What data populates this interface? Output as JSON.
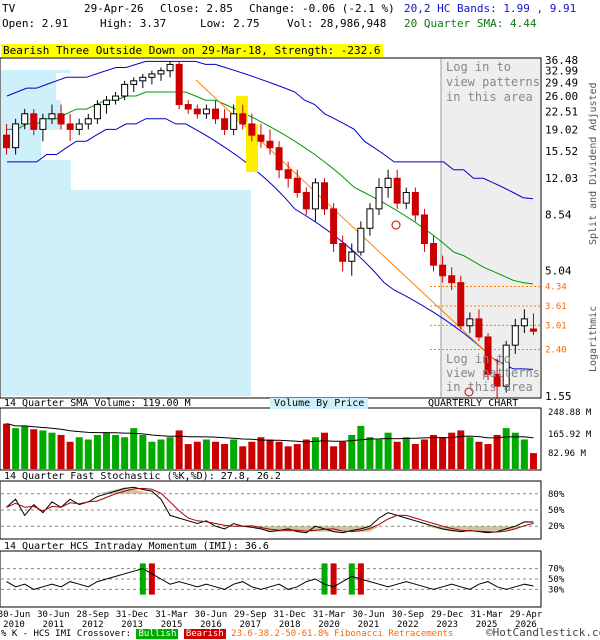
{
  "header": {
    "symbol": "TV",
    "date": "29-Apr-26",
    "close": "Close: 2.85",
    "change": "Change: -0.06 (-2.1 %)",
    "open": "Open: 2.91",
    "high": "High: 3.37",
    "low": "Low: 2.75",
    "vol": "Vol: 28,986,948",
    "hc_bands": "20,2 HC Bands: 1.99 , 9.91",
    "sma": "20 Quarter SMA: 4.44"
  },
  "pattern_banner": "Bearish Three Outside Down on 29-Mar-18, Strength: -232.6",
  "login_note_top": [
    "Log in to",
    "view patterns",
    "in this area"
  ],
  "login_note_bottom": [
    "Log in to",
    "view patterns",
    "in this area"
  ],
  "side_label_top": "Split and Dividend Adjusted",
  "side_label_bottom": "Logarithmic",
  "volume_by_price": "Volume By Price",
  "quarterly_chart": "QUARTERLY CHART",
  "volume_title": "14 Quarter SMA Volume: 119.00 M",
  "stoch_title": "14 Quarter Fast Stochastic (%K,%D): 27.8, 26.2",
  "imi_title": "14 Quarter HCS Intraday Momentum (IMI): 36.6",
  "watermark": "©HotCandlestick.com",
  "footer": {
    "legend_label": "% K - HCS IMI Crossover:",
    "bullish": "Bullish",
    "bearish": "Bearish",
    "fib": "23.6-38.2-50-61.8% Fibonacci Retracements"
  },
  "colors": {
    "bull": "#00aa00",
    "bear": "#cc0000",
    "hc_band": "#0000cc",
    "sma": "#009900",
    "vbp": "#cdf0fa",
    "fib": "#ff8000"
  },
  "chart_data": {
    "type": "candlestick",
    "price_ticks": [
      "36.48",
      "32.99",
      "29.49",
      "26.00",
      "22.51",
      "19.02",
      "15.52",
      "12.03",
      "8.54",
      "5.04",
      "1.55"
    ],
    "fib_levels": [
      "4.34",
      "3.61",
      "3.01",
      "2.40"
    ],
    "x_ticks": [
      "30-Jun 2010",
      "30-Jun 2011",
      "28-Sep 2012",
      "31-Dec 2013",
      "31-Mar 2015",
      "30-Jun 2016",
      "29-Sep 2017",
      "31-Dec 2018",
      "31-Mar 2020",
      "30-Jun 2021",
      "30-Sep 2022",
      "29-Dec 2023",
      "31-Mar 2025",
      "29-Apr 2026"
    ],
    "candles": [
      [
        18,
        20,
        15,
        16
      ],
      [
        16,
        21,
        15,
        20
      ],
      [
        20,
        23,
        19,
        22
      ],
      [
        22,
        23,
        18,
        19
      ],
      [
        19,
        22,
        17,
        21
      ],
      [
        21,
        24,
        20,
        22
      ],
      [
        22,
        24,
        19,
        20
      ],
      [
        20,
        22,
        17,
        19
      ],
      [
        19,
        21,
        18,
        20
      ],
      [
        20,
        22,
        19,
        21
      ],
      [
        21,
        25,
        20,
        24
      ],
      [
        24,
        26,
        22,
        25
      ],
      [
        25,
        27,
        24,
        26
      ],
      [
        26,
        30,
        25,
        29
      ],
      [
        29,
        31,
        27,
        30
      ],
      [
        30,
        32,
        28,
        31
      ],
      [
        31,
        33,
        29,
        32
      ],
      [
        32,
        34,
        30,
        33
      ],
      [
        33,
        36,
        31,
        35
      ],
      [
        35,
        36,
        23,
        24
      ],
      [
        24,
        25,
        22,
        23
      ],
      [
        23,
        24,
        21,
        22
      ],
      [
        22,
        24,
        21,
        23
      ],
      [
        23,
        25,
        20,
        21
      ],
      [
        21,
        23,
        18,
        19
      ],
      [
        19,
        24,
        18,
        22
      ],
      [
        22,
        24,
        19,
        20
      ],
      [
        20,
        22,
        17,
        18
      ],
      [
        18,
        20,
        16,
        17
      ],
      [
        17,
        19,
        15,
        16
      ],
      [
        16,
        17,
        12,
        13
      ],
      [
        13,
        14,
        11,
        12
      ],
      [
        12,
        13,
        10,
        10.5
      ],
      [
        10.5,
        11,
        8.5,
        9
      ],
      [
        9,
        12,
        8,
        11.5
      ],
      [
        11.5,
        12,
        8.5,
        9
      ],
      [
        9,
        9.5,
        6,
        6.5
      ],
      [
        6.5,
        7,
        5,
        5.5
      ],
      [
        5.5,
        6.5,
        4.8,
        6
      ],
      [
        6,
        8,
        5.8,
        7.5
      ],
      [
        7.5,
        9.5,
        7,
        9
      ],
      [
        9,
        12,
        8.5,
        11
      ],
      [
        11,
        13,
        10,
        12
      ],
      [
        12,
        13,
        9,
        9.5
      ],
      [
        9.5,
        11,
        9,
        10.5
      ],
      [
        10.5,
        11,
        8,
        8.5
      ],
      [
        8.5,
        9,
        6,
        6.5
      ],
      [
        6.5,
        7,
        5,
        5.3
      ],
      [
        5.3,
        5.8,
        4.5,
        4.8
      ],
      [
        4.8,
        5.2,
        4.2,
        4.5
      ],
      [
        4.5,
        4.8,
        2.9,
        3.0
      ],
      [
        3.0,
        3.4,
        2.8,
        3.2
      ],
      [
        3.2,
        3.5,
        2.6,
        2.7
      ],
      [
        2.7,
        2.8,
        1.8,
        1.9
      ],
      [
        1.9,
        2.2,
        1.5,
        1.7
      ],
      [
        1.7,
        2.6,
        1.6,
        2.5
      ],
      [
        2.5,
        3.2,
        2.3,
        3.0
      ],
      [
        3.0,
        3.5,
        2.8,
        3.2
      ],
      [
        2.91,
        3.37,
        2.75,
        2.85
      ]
    ],
    "hc_upper": [
      26,
      27,
      28,
      28,
      29,
      30,
      31,
      31,
      31,
      32,
      33,
      34,
      34,
      35,
      36,
      36,
      36,
      36,
      36,
      36,
      35,
      35,
      34,
      33,
      32,
      31,
      30,
      29,
      28,
      27,
      25,
      24,
      22,
      21,
      20,
      19,
      17,
      16,
      15,
      14,
      14,
      14,
      14,
      14,
      14,
      13,
      13,
      12,
      12,
      11.5,
      11,
      10.5,
      10,
      9.9
    ],
    "hc_lower": [
      14,
      14,
      14,
      14,
      15,
      15,
      16,
      17,
      17,
      18,
      19,
      19,
      20,
      20,
      21,
      21,
      21,
      20,
      20,
      19,
      18,
      17,
      16,
      15,
      14,
      13,
      12,
      11,
      10,
      9,
      8.5,
      8,
      7.5,
      7,
      6.5,
      6,
      5.5,
      5,
      4.5,
      4.2,
      4,
      3.8,
      3.6,
      3.4,
      3.2,
      3,
      2.8,
      2.6,
      2.4,
      2.2,
      2.1,
      2.0,
      2.0,
      1.99
    ],
    "sma_values": [
      19,
      19,
      20,
      20,
      21,
      21,
      22,
      23,
      23,
      24,
      25,
      25,
      26,
      26,
      27,
      27,
      27,
      27,
      27,
      26,
      25,
      25,
      24,
      23,
      22,
      21,
      20,
      19,
      18,
      17,
      16,
      15,
      14,
      13,
      12,
      11,
      10.5,
      10,
      9.5,
      9,
      8.5,
      8,
      7.5,
      7,
      6.5,
      6,
      5.8,
      5.5,
      5.2,
      5,
      4.8,
      4.6,
      4.5,
      4.44
    ],
    "volume_ticks": [
      "248.88 M",
      "165.92 M",
      "82.96 M"
    ],
    "volume_values": [
      200,
      180,
      190,
      175,
      170,
      160,
      150,
      120,
      140,
      130,
      150,
      160,
      150,
      140,
      180,
      150,
      120,
      130,
      140,
      170,
      110,
      120,
      130,
      120,
      110,
      130,
      100,
      120,
      140,
      130,
      120,
      100,
      110,
      130,
      140,
      160,
      100,
      120,
      150,
      190,
      140,
      130,
      160,
      120,
      140,
      110,
      130,
      150,
      140,
      160,
      170,
      140,
      120,
      110,
      150,
      180,
      160,
      130,
      70
    ],
    "stoch_ticks": [
      "80%",
      "50%",
      "20%"
    ],
    "imi_ticks": [
      "70%",
      "50%",
      "30%"
    ]
  }
}
